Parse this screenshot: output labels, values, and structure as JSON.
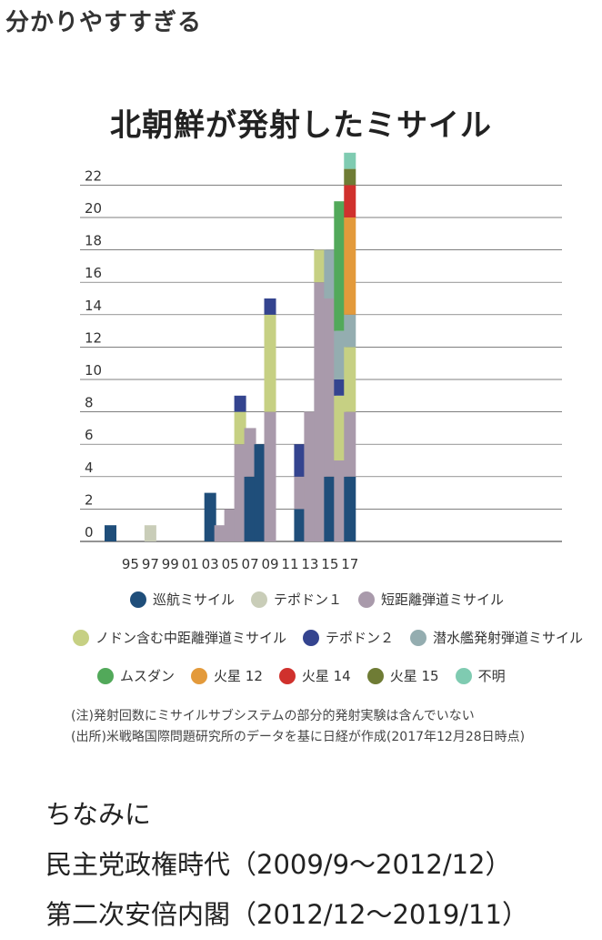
{
  "page": {
    "headline": "分かりやすすぎる",
    "footer_lines": [
      "ちなみに",
      "民主党政権時代（2009/9〜2012/12）",
      "第二次安倍内閣（2012/12〜2019/11）"
    ]
  },
  "chart_data": {
    "type": "bar",
    "stacked": true,
    "title": "北朝鮮が発射したミサイル",
    "xlabel": "",
    "ylabel": "",
    "ylim": [
      0,
      23
    ],
    "grid": true,
    "y_ticks": [
      0,
      2,
      4,
      6,
      8,
      10,
      12,
      14,
      16,
      18,
      20,
      22
    ],
    "x_tick_labels": [
      "95",
      "97",
      "99",
      "01",
      "03",
      "05",
      "07",
      "09",
      "11",
      "13",
      "15",
      "17"
    ],
    "categories": [
      "1993",
      "1994",
      "1995",
      "1996",
      "1997",
      "1998",
      "1999",
      "2000",
      "2001",
      "2002",
      "2003",
      "2004",
      "2005",
      "2006",
      "2007",
      "2008",
      "2009",
      "2010",
      "2011",
      "2012",
      "2013",
      "2014",
      "2015",
      "2016",
      "2017"
    ],
    "series": [
      {
        "name": "巡航ミサイル",
        "color": "#1f4e7a",
        "values": [
          1,
          0,
          0,
          0,
          0,
          0,
          0,
          0,
          0,
          0,
          3,
          0,
          0,
          0,
          4,
          6,
          0,
          0,
          0,
          2,
          0,
          0,
          4,
          0,
          4
        ]
      },
      {
        "name": "テポドン１",
        "color": "#c9cdb8",
        "values": [
          0,
          0,
          0,
          0,
          1,
          0,
          0,
          0,
          0,
          0,
          0,
          0,
          0,
          0,
          0,
          0,
          0,
          0,
          0,
          0,
          0,
          0,
          0,
          0,
          0
        ]
      },
      {
        "name": "短距離弾道ミサイル",
        "color": "#a99aab",
        "values": [
          0,
          0,
          0,
          0,
          0,
          0,
          0,
          0,
          0,
          0,
          0,
          1,
          2,
          6,
          3,
          0,
          8,
          0,
          0,
          2,
          8,
          16,
          11,
          5,
          4
        ]
      },
      {
        "name": "ノドン含む中距離弾道ミサイル",
        "color": "#c6d083",
        "values": [
          0,
          0,
          0,
          0,
          0,
          0,
          0,
          0,
          0,
          0,
          0,
          0,
          0,
          2,
          0,
          0,
          6,
          0,
          0,
          0,
          0,
          2,
          0,
          4,
          4
        ]
      },
      {
        "name": "テポドン２",
        "color": "#34448f",
        "values": [
          0,
          0,
          0,
          0,
          0,
          0,
          0,
          0,
          0,
          0,
          0,
          0,
          0,
          1,
          0,
          0,
          1,
          0,
          0,
          2,
          0,
          0,
          0,
          1,
          0
        ]
      },
      {
        "name": "潜水艦発射弾道ミサイル",
        "color": "#94adb0",
        "values": [
          0,
          0,
          0,
          0,
          0,
          0,
          0,
          0,
          0,
          0,
          0,
          0,
          0,
          0,
          0,
          0,
          0,
          0,
          0,
          0,
          0,
          0,
          3,
          3,
          2
        ]
      },
      {
        "name": "ムスダン",
        "color": "#52a95a",
        "values": [
          0,
          0,
          0,
          0,
          0,
          0,
          0,
          0,
          0,
          0,
          0,
          0,
          0,
          0,
          0,
          0,
          0,
          0,
          0,
          0,
          0,
          0,
          0,
          8,
          0
        ]
      },
      {
        "name": "火星 12",
        "color": "#e39a3b",
        "values": [
          0,
          0,
          0,
          0,
          0,
          0,
          0,
          0,
          0,
          0,
          0,
          0,
          0,
          0,
          0,
          0,
          0,
          0,
          0,
          0,
          0,
          0,
          0,
          0,
          6
        ]
      },
      {
        "name": "火星 14",
        "color": "#d0312d",
        "values": [
          0,
          0,
          0,
          0,
          0,
          0,
          0,
          0,
          0,
          0,
          0,
          0,
          0,
          0,
          0,
          0,
          0,
          0,
          0,
          0,
          0,
          0,
          0,
          0,
          2
        ]
      },
      {
        "name": "火星 15",
        "color": "#6f7c35",
        "values": [
          0,
          0,
          0,
          0,
          0,
          0,
          0,
          0,
          0,
          0,
          0,
          0,
          0,
          0,
          0,
          0,
          0,
          0,
          0,
          0,
          0,
          0,
          0,
          0,
          1
        ]
      },
      {
        "name": "不明",
        "color": "#7fcbb1",
        "values": [
          0,
          0,
          0,
          0,
          0,
          0,
          0,
          0,
          0,
          0,
          0,
          0,
          0,
          0,
          0,
          0,
          0,
          0,
          0,
          0,
          0,
          0,
          0,
          0,
          1
        ]
      }
    ],
    "legend": {
      "placement": "bottom",
      "rows": [
        [
          "巡航ミサイル",
          "テポドン１",
          "短距離弾道ミサイル"
        ],
        [
          "ノドン含む中距離弾道ミサイル",
          "テポドン２",
          "潜水艦発射弾道ミサイル"
        ],
        [
          "ムスダン",
          "火星 12",
          "火星 14",
          "火星 15",
          "不明"
        ]
      ]
    },
    "notes": [
      "(注)発射回数にミサイルサブシステムの部分的発射実験は含んでいない",
      "(出所)米戦略国際問題研究所のデータを基に日経が作成(2017年12月28日時点)"
    ]
  }
}
